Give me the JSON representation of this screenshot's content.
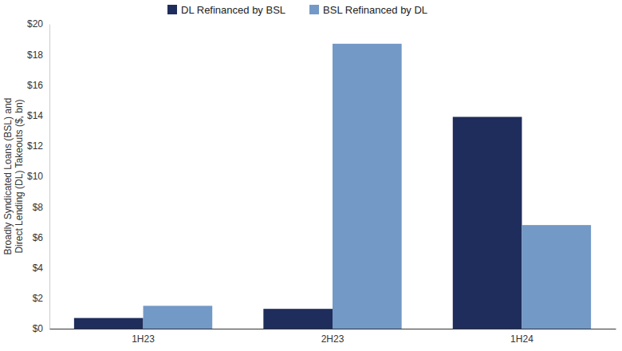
{
  "chart_data": {
    "type": "bar",
    "y_label": "Broadly Syndicated Loans (BSL) and\nDirect Lending (DL) Takeouts ($, bn)",
    "categories": [
      "1H23",
      "2H23",
      "1H24"
    ],
    "series": [
      {
        "name": "DL Refinanced by BSL",
        "color": "#1f2d5c",
        "values": [
          0.7,
          1.3,
          13.9
        ]
      },
      {
        "name": "BSL Refinanced by DL",
        "color": "#7399c6",
        "values": [
          1.5,
          18.7,
          6.8
        ]
      }
    ],
    "ylim": [
      0,
      20
    ],
    "yticks": [
      {
        "value": 0,
        "label": "$0"
      },
      {
        "value": 2,
        "label": "$2"
      },
      {
        "value": 4,
        "label": "$4"
      },
      {
        "value": 6,
        "label": "$6"
      },
      {
        "value": 8,
        "label": "$8"
      },
      {
        "value": 10,
        "label": "$10"
      },
      {
        "value": 12,
        "label": "$12"
      },
      {
        "value": 14,
        "label": "$14"
      },
      {
        "value": 16,
        "label": "$16"
      },
      {
        "value": 18,
        "label": "$18"
      },
      {
        "value": 20,
        "label": "$20"
      }
    ],
    "grid": false,
    "legend": "top"
  }
}
